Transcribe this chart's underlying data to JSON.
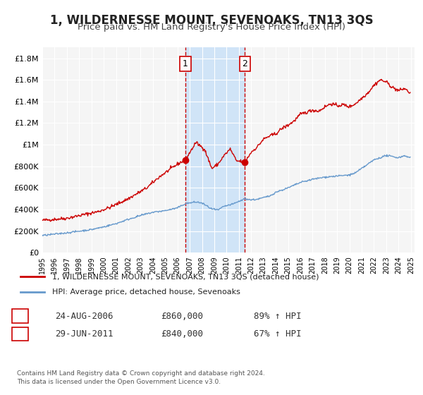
{
  "title": "1, WILDERNESSE MOUNT, SEVENOAKS, TN13 3QS",
  "subtitle": "Price paid vs. HM Land Registry's House Price Index (HPI)",
  "title_fontsize": 12,
  "subtitle_fontsize": 9.5,
  "background_color": "#ffffff",
  "plot_bg_color": "#f5f5f5",
  "grid_color": "#ffffff",
  "ylabel_ticks": [
    "£0",
    "£200K",
    "£400K",
    "£600K",
    "£800K",
    "£1M",
    "£1.2M",
    "£1.4M",
    "£1.6M",
    "£1.8M"
  ],
  "ylabel_values": [
    0,
    200000,
    400000,
    600000,
    800000,
    1000000,
    1200000,
    1400000,
    1600000,
    1800000
  ],
  "ylim": [
    0,
    1900000
  ],
  "xlim_start": 1995.0,
  "xlim_end": 2025.3,
  "sale1_date": 2006.648,
  "sale1_price": 860000,
  "sale1_label": "1",
  "sale2_date": 2011.494,
  "sale2_price": 840000,
  "sale2_label": "2",
  "shaded_region_start": 2006.648,
  "shaded_region_end": 2011.494,
  "shaded_color": "#d0e4f7",
  "red_line_color": "#cc0000",
  "blue_line_color": "#6699cc",
  "sale_marker_color": "#cc0000",
  "legend_red_label": "1, WILDERNESSE MOUNT, SEVENOAKS, TN13 3QS (detached house)",
  "legend_blue_label": "HPI: Average price, detached house, Sevenoaks",
  "table_row1": [
    "1",
    "24-AUG-2006",
    "£860,000",
    "89% ↑ HPI"
  ],
  "table_row2": [
    "2",
    "29-JUN-2011",
    "£840,000",
    "67% ↑ HPI"
  ],
  "footnote": "Contains HM Land Registry data © Crown copyright and database right 2024.\nThis data is licensed under the Open Government Licence v3.0.",
  "xtick_years": [
    1995,
    1996,
    1997,
    1998,
    1999,
    2000,
    2001,
    2002,
    2003,
    2004,
    2005,
    2006,
    2007,
    2008,
    2009,
    2010,
    2011,
    2012,
    2013,
    2014,
    2015,
    2016,
    2017,
    2018,
    2019,
    2020,
    2021,
    2022,
    2023,
    2024,
    2025
  ]
}
